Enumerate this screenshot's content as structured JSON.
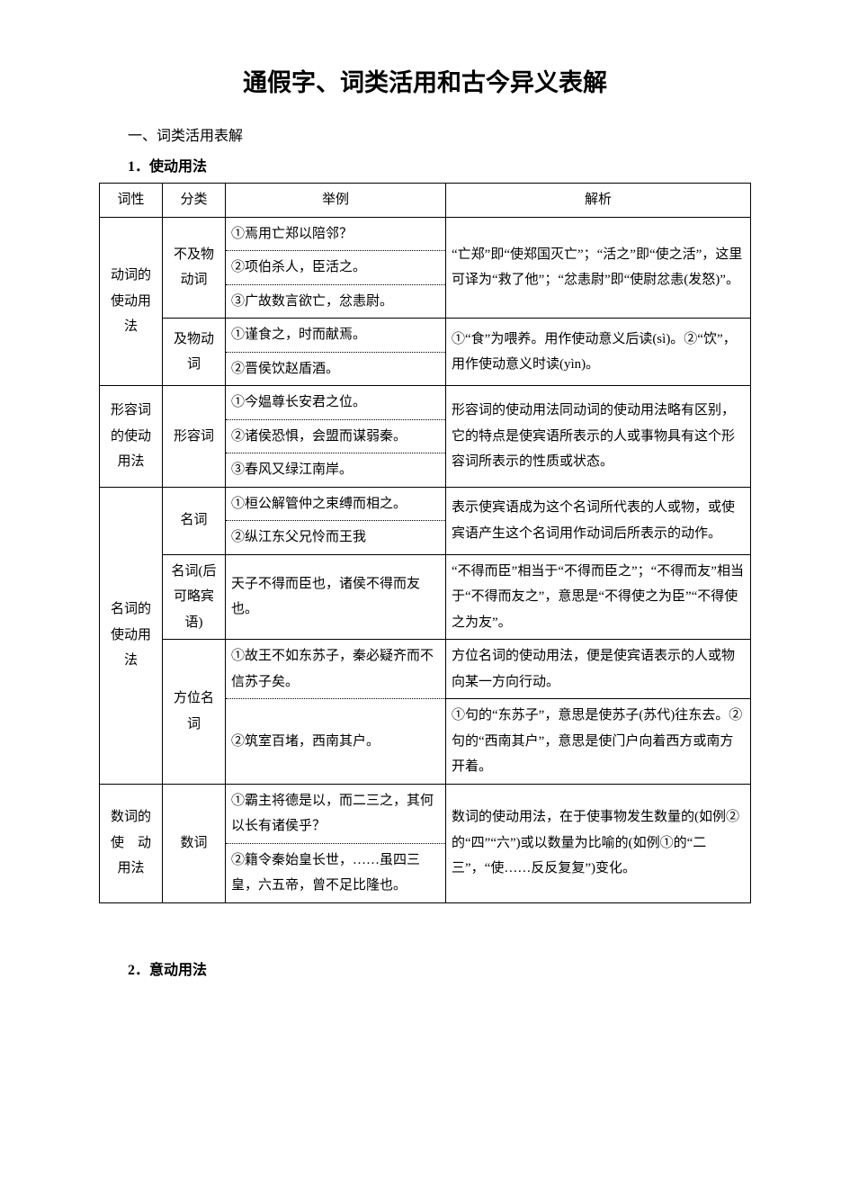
{
  "title": "通假字、词类活用和古今异义表解",
  "intro": "一、词类活用表解",
  "section1": "1．使动用法",
  "headers": {
    "h1": "词性",
    "h2": "分类",
    "h3": "举例",
    "h4": "解析"
  },
  "r1": {
    "pos": "动词的使动用法",
    "cat1": "不及物动词",
    "ex1": "①焉用亡郑以陪邻？",
    "ex2": "②项伯杀人，臣活之。",
    "ex3": "③广故数言欲亡，忿恚尉。",
    "cat2": "及物动词",
    "ex4": "①谨食之，时而献焉。",
    "ex5": "②晋侯饮赵盾酒。",
    "an1": "“亡郑”即“使郑国灭亡”；“活之”即“使之活”，这里可译为“救了他”；“忿恚尉”即“使尉忿恚(发怒)”。",
    "an2": "①“食”为喂养。用作使动意义后读(sì)。②“饮”，用作使动意义时读(yìn)。"
  },
  "r2": {
    "pos": "形容词的使动用法",
    "cat": "形容词",
    "ex1": "①今媪尊长安君之位。",
    "ex2": "②诸侯恐惧，会盟而谋弱秦。",
    "ex3": "③春风又绿江南岸。",
    "an": "形容词的使动用法同动词的使动用法略有区别，它的特点是使宾语所表示的人或事物具有这个形容词所表示的性质或状态。"
  },
  "r3": {
    "pos": "名词的使动用法",
    "cat1": "名词",
    "ex1": "①桓公解管仲之束缚而相之。",
    "ex2": "②纵江东父兄怜而王我",
    "an1": "表示使宾语成为这个名词所代表的人或物，或使宾语产生这个名词用作动词后所表示的动作。",
    "cat2": "名词(后可略宾语)",
    "ex3": "天子不得而臣也，诸侯不得而友也。",
    "an2": "“不得而臣”相当于“不得而臣之”；“不得而友”相当于“不得而友之”，意思是“不得使之为臣”“不得使之为友”。",
    "cat3": "方位名词",
    "ex4": "①故王不如东苏子，秦必疑齐而不信苏子矣。",
    "ex5": "②筑室百堵，西南其户。",
    "an3": "方位名词的使动用法，便是使宾语表示的人或物向某一方向行动。",
    "an4": "①句的“东苏子”，意思是使苏子(苏代)往东去。②句的“西南其户”，意思是使门户向着西方或南方开着。"
  },
  "r4": {
    "pos": "数词的使 动用法",
    "cat": "数词",
    "ex1": "①霸主将德是以，而二三之，其何以长有诸侯乎？",
    "ex2": "②籍令秦始皇长世，……虽四三皇，六五帝，曾不足比隆也。",
    "an": "数词的使动用法，在于使事物发生数量的(如例②的“四”“六”)或以数量为比喻的(如例①的“二三”，“使……反反复复”)变化。"
  },
  "section2": "2．意动用法"
}
